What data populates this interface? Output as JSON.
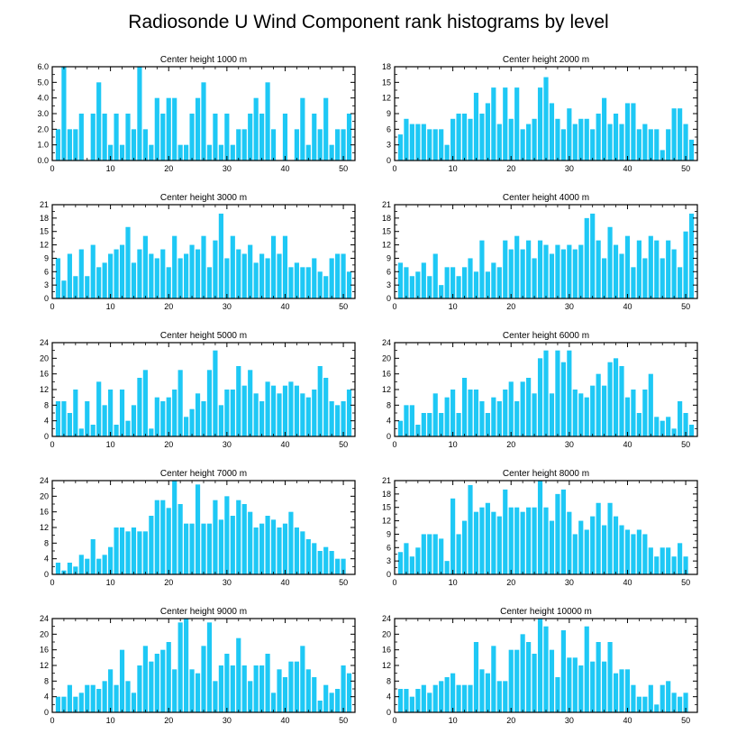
{
  "figure_title": "Radiosonde U Wind Component rank histograms by level",
  "bar_color": "#1ec8f5",
  "chart_data": [
    {
      "type": "bar",
      "title": "Center height 1000 m",
      "xlabel": "",
      "ylabel": "",
      "xlim": [
        0,
        52
      ],
      "ylim": [
        0,
        6
      ],
      "xticks": [
        0,
        10,
        20,
        30,
        40,
        50
      ],
      "xtick_labels": [
        "0",
        "10",
        "20",
        "30",
        "40",
        "50"
      ],
      "yticks": [
        0,
        1,
        2,
        3,
        4,
        5,
        6
      ],
      "ytick_labels": [
        "0.0",
        "1.0",
        "2.0",
        "3.0",
        "4.0",
        "5.0",
        "6.0"
      ],
      "x": [
        1,
        2,
        3,
        4,
        5,
        6,
        7,
        8,
        9,
        10,
        11,
        12,
        13,
        14,
        15,
        16,
        17,
        18,
        19,
        20,
        21,
        22,
        23,
        24,
        25,
        26,
        27,
        28,
        29,
        30,
        31,
        32,
        33,
        34,
        35,
        36,
        37,
        38,
        39,
        40,
        41,
        42,
        43,
        44,
        45,
        46,
        47,
        48,
        49,
        50,
        51
      ],
      "values": [
        2,
        6,
        2,
        2,
        3,
        0,
        3,
        5,
        3,
        1,
        3,
        1,
        3,
        2,
        6,
        2,
        1,
        4,
        3,
        4,
        4,
        1,
        1,
        3,
        4,
        5,
        1,
        3,
        1,
        3,
        1,
        2,
        2,
        3,
        4,
        3,
        5,
        2,
        0,
        3,
        0,
        2,
        4,
        1,
        3,
        2,
        4,
        1,
        2,
        2,
        3
      ]
    },
    {
      "type": "bar",
      "title": "Center height 2000 m",
      "xlabel": "",
      "ylabel": "",
      "xlim": [
        0,
        52
      ],
      "ylim": [
        0,
        18
      ],
      "xticks": [
        0,
        10,
        20,
        30,
        40,
        50
      ],
      "xtick_labels": [
        "0",
        "10",
        "20",
        "30",
        "40",
        "50"
      ],
      "yticks": [
        0,
        3,
        6,
        9,
        12,
        15,
        18
      ],
      "ytick_labels": [
        "0",
        "3",
        "6",
        "9",
        "12",
        "15",
        "18"
      ],
      "x": [
        1,
        2,
        3,
        4,
        5,
        6,
        7,
        8,
        9,
        10,
        11,
        12,
        13,
        14,
        15,
        16,
        17,
        18,
        19,
        20,
        21,
        22,
        23,
        24,
        25,
        26,
        27,
        28,
        29,
        30,
        31,
        32,
        33,
        34,
        35,
        36,
        37,
        38,
        39,
        40,
        41,
        42,
        43,
        44,
        45,
        46,
        47,
        48,
        49,
        50,
        51
      ],
      "values": [
        5,
        8,
        7,
        7,
        7,
        6,
        6,
        6,
        3,
        8,
        9,
        9,
        8,
        13,
        9,
        11,
        14,
        7,
        14,
        8,
        14,
        6,
        7,
        8,
        14,
        16,
        11,
        8,
        6,
        10,
        7,
        8,
        8,
        6,
        9,
        12,
        7,
        9,
        7,
        11,
        11,
        6,
        7,
        6,
        6,
        2,
        6,
        10,
        10,
        7,
        4
      ]
    },
    {
      "type": "bar",
      "title": "Center height 3000 m",
      "xlabel": "",
      "ylabel": "",
      "xlim": [
        0,
        52
      ],
      "ylim": [
        0,
        21
      ],
      "xticks": [
        0,
        10,
        20,
        30,
        40,
        50
      ],
      "xtick_labels": [
        "0",
        "10",
        "20",
        "30",
        "40",
        "50"
      ],
      "yticks": [
        0,
        3,
        6,
        9,
        12,
        15,
        18,
        21
      ],
      "ytick_labels": [
        "0",
        "3",
        "6",
        "9",
        "12",
        "15",
        "18",
        "21"
      ],
      "x": [
        1,
        2,
        3,
        4,
        5,
        6,
        7,
        8,
        9,
        10,
        11,
        12,
        13,
        14,
        15,
        16,
        17,
        18,
        19,
        20,
        21,
        22,
        23,
        24,
        25,
        26,
        27,
        28,
        29,
        30,
        31,
        32,
        33,
        34,
        35,
        36,
        37,
        38,
        39,
        40,
        41,
        42,
        43,
        44,
        45,
        46,
        47,
        48,
        49,
        50,
        51
      ],
      "values": [
        9,
        4,
        10,
        5,
        11,
        5,
        12,
        7,
        8,
        10,
        11,
        12,
        16,
        8,
        11,
        14,
        10,
        9,
        11,
        7,
        14,
        9,
        10,
        12,
        11,
        14,
        7,
        13,
        19,
        9,
        14,
        11,
        10,
        12,
        8,
        10,
        9,
        14,
        10,
        14,
        7,
        8,
        7,
        7,
        9,
        6,
        5,
        9,
        10,
        10,
        6
      ]
    },
    {
      "type": "bar",
      "title": "Center height 4000 m",
      "xlabel": "",
      "ylabel": "",
      "xlim": [
        0,
        52
      ],
      "ylim": [
        0,
        21
      ],
      "xticks": [
        0,
        10,
        20,
        30,
        40,
        50
      ],
      "xtick_labels": [
        "0",
        "10",
        "20",
        "30",
        "40",
        "50"
      ],
      "yticks": [
        0,
        3,
        6,
        9,
        12,
        15,
        18,
        21
      ],
      "ytick_labels": [
        "0",
        "3",
        "6",
        "9",
        "12",
        "15",
        "18",
        "21"
      ],
      "x": [
        1,
        2,
        3,
        4,
        5,
        6,
        7,
        8,
        9,
        10,
        11,
        12,
        13,
        14,
        15,
        16,
        17,
        18,
        19,
        20,
        21,
        22,
        23,
        24,
        25,
        26,
        27,
        28,
        29,
        30,
        31,
        32,
        33,
        34,
        35,
        36,
        37,
        38,
        39,
        40,
        41,
        42,
        43,
        44,
        45,
        46,
        47,
        48,
        49,
        50,
        51
      ],
      "values": [
        8,
        7,
        5,
        6,
        8,
        5,
        10,
        3,
        7,
        7,
        5,
        7,
        9,
        6,
        13,
        6,
        8,
        7,
        13,
        11,
        14,
        11,
        13,
        9,
        13,
        12,
        10,
        12,
        11,
        12,
        11,
        12,
        18,
        19,
        13,
        9,
        16,
        12,
        10,
        14,
        7,
        13,
        9,
        14,
        13,
        9,
        13,
        11,
        7,
        15,
        19
      ]
    },
    {
      "type": "bar",
      "title": "Center height 5000 m",
      "xlabel": "",
      "ylabel": "",
      "xlim": [
        0,
        52
      ],
      "ylim": [
        0,
        24
      ],
      "xticks": [
        0,
        10,
        20,
        30,
        40,
        50
      ],
      "xtick_labels": [
        "0",
        "10",
        "20",
        "30",
        "40",
        "50"
      ],
      "yticks": [
        0,
        4,
        8,
        12,
        16,
        20,
        24
      ],
      "ytick_labels": [
        "0",
        "4",
        "8",
        "12",
        "16",
        "20",
        "24"
      ],
      "x": [
        1,
        2,
        3,
        4,
        5,
        6,
        7,
        8,
        9,
        10,
        11,
        12,
        13,
        14,
        15,
        16,
        17,
        18,
        19,
        20,
        21,
        22,
        23,
        24,
        25,
        26,
        27,
        28,
        29,
        30,
        31,
        32,
        33,
        34,
        35,
        36,
        37,
        38,
        39,
        40,
        41,
        42,
        43,
        44,
        45,
        46,
        47,
        48,
        49,
        50,
        51
      ],
      "values": [
        9,
        9,
        6,
        12,
        2,
        9,
        3,
        14,
        8,
        12,
        3,
        12,
        4,
        8,
        15,
        17,
        2,
        10,
        9,
        10,
        12,
        17,
        5,
        7,
        11,
        9,
        17,
        22,
        8,
        12,
        12,
        18,
        13,
        17,
        11,
        9,
        14,
        13,
        11,
        13,
        14,
        13,
        11,
        10,
        12,
        18,
        15,
        9,
        8,
        9,
        12
      ]
    },
    {
      "type": "bar",
      "title": "Center height 6000 m",
      "xlabel": "",
      "ylabel": "",
      "xlim": [
        0,
        52
      ],
      "ylim": [
        0,
        24
      ],
      "xticks": [
        0,
        10,
        20,
        30,
        40,
        50
      ],
      "xtick_labels": [
        "0",
        "10",
        "20",
        "30",
        "40",
        "50"
      ],
      "yticks": [
        0,
        4,
        8,
        12,
        16,
        20,
        24
      ],
      "ytick_labels": [
        "0",
        "4",
        "8",
        "12",
        "16",
        "20",
        "24"
      ],
      "x": [
        1,
        2,
        3,
        4,
        5,
        6,
        7,
        8,
        9,
        10,
        11,
        12,
        13,
        14,
        15,
        16,
        17,
        18,
        19,
        20,
        21,
        22,
        23,
        24,
        25,
        26,
        27,
        28,
        29,
        30,
        31,
        32,
        33,
        34,
        35,
        36,
        37,
        38,
        39,
        40,
        41,
        42,
        43,
        44,
        45,
        46,
        47,
        48,
        49,
        50,
        51
      ],
      "values": [
        4,
        8,
        8,
        3,
        6,
        6,
        11,
        6,
        10,
        12,
        6,
        15,
        12,
        12,
        9,
        6,
        10,
        9,
        12,
        14,
        9,
        14,
        15,
        11,
        20,
        22,
        11,
        22,
        19,
        22,
        12,
        11,
        10,
        13,
        16,
        13,
        19,
        20,
        18,
        10,
        12,
        6,
        12,
        16,
        5,
        4,
        5,
        2,
        9,
        6,
        3
      ]
    },
    {
      "type": "bar",
      "title": "Center height 7000 m",
      "xlabel": "",
      "ylabel": "",
      "xlim": [
        0,
        52
      ],
      "ylim": [
        0,
        24
      ],
      "xticks": [
        0,
        10,
        20,
        30,
        40,
        50
      ],
      "xtick_labels": [
        "0",
        "10",
        "20",
        "30",
        "40",
        "50"
      ],
      "yticks": [
        0,
        4,
        8,
        12,
        16,
        20,
        24
      ],
      "ytick_labels": [
        "0",
        "4",
        "8",
        "12",
        "16",
        "20",
        "24"
      ],
      "x": [
        1,
        2,
        3,
        4,
        5,
        6,
        7,
        8,
        9,
        10,
        11,
        12,
        13,
        14,
        15,
        16,
        17,
        18,
        19,
        20,
        21,
        22,
        23,
        24,
        25,
        26,
        27,
        28,
        29,
        30,
        31,
        32,
        33,
        34,
        35,
        36,
        37,
        38,
        39,
        40,
        41,
        42,
        43,
        44,
        45,
        46,
        47,
        48,
        49,
        50,
        51
      ],
      "values": [
        3,
        1,
        3,
        2,
        5,
        4,
        9,
        4,
        5,
        7,
        12,
        12,
        11,
        12,
        11,
        11,
        15,
        19,
        19,
        17,
        24,
        18,
        13,
        13,
        23,
        13,
        13,
        19,
        14,
        20,
        15,
        19,
        18,
        16,
        12,
        13,
        15,
        14,
        12,
        13,
        16,
        12,
        11,
        9,
        8,
        6,
        7,
        6,
        4,
        4,
        0
      ]
    },
    {
      "type": "bar",
      "title": "Center height 8000 m",
      "xlabel": "",
      "ylabel": "",
      "xlim": [
        0,
        52
      ],
      "ylim": [
        0,
        21
      ],
      "xticks": [
        0,
        10,
        20,
        30,
        40,
        50
      ],
      "xtick_labels": [
        "0",
        "10",
        "20",
        "30",
        "40",
        "50"
      ],
      "yticks": [
        0,
        3,
        6,
        9,
        12,
        15,
        18,
        21
      ],
      "ytick_labels": [
        "0",
        "3",
        "6",
        "9",
        "12",
        "15",
        "18",
        "21"
      ],
      "x": [
        1,
        2,
        3,
        4,
        5,
        6,
        7,
        8,
        9,
        10,
        11,
        12,
        13,
        14,
        15,
        16,
        17,
        18,
        19,
        20,
        21,
        22,
        23,
        24,
        25,
        26,
        27,
        28,
        29,
        30,
        31,
        32,
        33,
        34,
        35,
        36,
        37,
        38,
        39,
        40,
        41,
        42,
        43,
        44,
        45,
        46,
        47,
        48,
        49,
        50,
        51
      ],
      "values": [
        5,
        7,
        4,
        6,
        9,
        9,
        9,
        8,
        3,
        17,
        9,
        12,
        20,
        14,
        15,
        16,
        14,
        13,
        19,
        15,
        15,
        14,
        15,
        15,
        21,
        15,
        12,
        18,
        19,
        14,
        9,
        12,
        10,
        13,
        16,
        11,
        16,
        13,
        11,
        10,
        9,
        10,
        9,
        6,
        4,
        6,
        6,
        4,
        7,
        4,
        0
      ]
    },
    {
      "type": "bar",
      "title": "Center height 9000 m",
      "xlabel": "",
      "ylabel": "",
      "xlim": [
        0,
        52
      ],
      "ylim": [
        0,
        24
      ],
      "xticks": [
        0,
        10,
        20,
        30,
        40,
        50
      ],
      "xtick_labels": [
        "0",
        "10",
        "20",
        "30",
        "40",
        "50"
      ],
      "yticks": [
        0,
        4,
        8,
        12,
        16,
        20,
        24
      ],
      "ytick_labels": [
        "0",
        "4",
        "8",
        "12",
        "16",
        "20",
        "24"
      ],
      "x": [
        1,
        2,
        3,
        4,
        5,
        6,
        7,
        8,
        9,
        10,
        11,
        12,
        13,
        14,
        15,
        16,
        17,
        18,
        19,
        20,
        21,
        22,
        23,
        24,
        25,
        26,
        27,
        28,
        29,
        30,
        31,
        32,
        33,
        34,
        35,
        36,
        37,
        38,
        39,
        40,
        41,
        42,
        43,
        44,
        45,
        46,
        47,
        48,
        49,
        50,
        51
      ],
      "values": [
        4,
        4,
        7,
        4,
        5,
        7,
        7,
        6,
        8,
        11,
        7,
        16,
        8,
        5,
        12,
        17,
        13,
        15,
        16,
        18,
        11,
        23,
        24,
        11,
        10,
        17,
        23,
        8,
        12,
        15,
        12,
        19,
        12,
        8,
        12,
        12,
        15,
        5,
        11,
        9,
        13,
        13,
        17,
        11,
        9,
        3,
        7,
        5,
        6,
        12,
        10
      ]
    },
    {
      "type": "bar",
      "title": "Center height 10000 m",
      "xlabel": "",
      "ylabel": "",
      "xlim": [
        0,
        52
      ],
      "ylim": [
        0,
        24
      ],
      "xticks": [
        0,
        10,
        20,
        30,
        40,
        50
      ],
      "xtick_labels": [
        "0",
        "10",
        "20",
        "30",
        "40",
        "50"
      ],
      "yticks": [
        0,
        4,
        8,
        12,
        16,
        20,
        24
      ],
      "ytick_labels": [
        "0",
        "4",
        "8",
        "12",
        "16",
        "20",
        "24"
      ],
      "x": [
        1,
        2,
        3,
        4,
        5,
        6,
        7,
        8,
        9,
        10,
        11,
        12,
        13,
        14,
        15,
        16,
        17,
        18,
        19,
        20,
        21,
        22,
        23,
        24,
        25,
        26,
        27,
        28,
        29,
        30,
        31,
        32,
        33,
        34,
        35,
        36,
        37,
        38,
        39,
        40,
        41,
        42,
        43,
        44,
        45,
        46,
        47,
        48,
        49,
        50,
        51
      ],
      "values": [
        6,
        6,
        4,
        6,
        7,
        5,
        7,
        8,
        9,
        10,
        7,
        7,
        7,
        18,
        11,
        10,
        17,
        8,
        8,
        16,
        16,
        20,
        18,
        15,
        24,
        22,
        16,
        9,
        21,
        14,
        14,
        12,
        22,
        13,
        18,
        13,
        18,
        10,
        11,
        11,
        7,
        4,
        4,
        7,
        2,
        7,
        8,
        5,
        4,
        5,
        0
      ]
    }
  ]
}
